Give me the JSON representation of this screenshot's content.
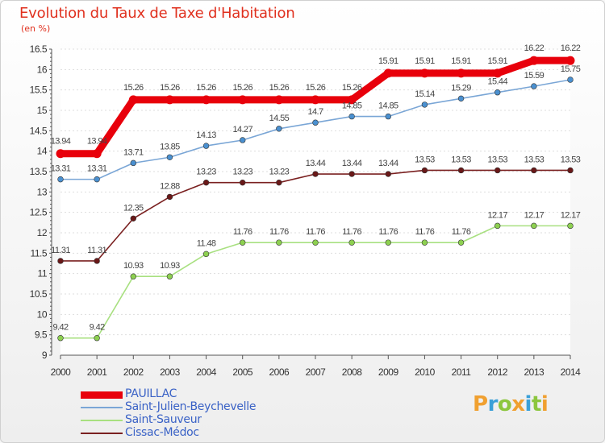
{
  "header": {
    "title": "Evolution du Taux de Taxe d'Habitation",
    "unit": "(en %)"
  },
  "logo": {
    "text": "Proxiti",
    "letters": [
      {
        "ch": "P",
        "color": "#f0a030"
      },
      {
        "ch": "r",
        "color": "#3aa0d8"
      },
      {
        "ch": "o",
        "color": "#8cc63e"
      },
      {
        "ch": "x",
        "color": "#f0a030"
      },
      {
        "ch": "i",
        "color": "#3aa0d8"
      },
      {
        "ch": "t",
        "color": "#8cc63e"
      },
      {
        "ch": "i",
        "color": "#f0a030"
      }
    ]
  },
  "chart_data": {
    "type": "line",
    "title": "Evolution du Taux de Taxe d'Habitation",
    "ylabel": "(en %)",
    "xlabel": "",
    "x": [
      2000,
      2001,
      2002,
      2003,
      2004,
      2005,
      2006,
      2007,
      2008,
      2009,
      2010,
      2011,
      2012,
      2013,
      2014
    ],
    "ylim": [
      9,
      16.5
    ],
    "yticks": [
      "9",
      "9.5",
      "10",
      "10.5",
      "11",
      "11.5",
      "12",
      "12.5",
      "13",
      "13.5",
      "14",
      "14.5",
      "15",
      "15.5",
      "16",
      "16.5"
    ],
    "grid": "horizontal dashed",
    "legend_position": "bottom-left",
    "series": [
      {
        "name": "PAUILLAC",
        "color": "#e8000b",
        "values": [
          13.94,
          13.94,
          15.26,
          15.26,
          15.26,
          15.26,
          15.26,
          15.26,
          15.26,
          15.91,
          15.91,
          15.91,
          15.91,
          16.22,
          16.22
        ],
        "labels": [
          "13.94",
          "13.94",
          "15.26",
          "15.26",
          "15.26",
          "15.26",
          "15.26",
          "15.26",
          "15.26",
          "15.91",
          "15.91",
          "15.91",
          "15.91",
          "16.22",
          "16.22"
        ]
      },
      {
        "name": "Saint-Julien-Beychevelle",
        "color": "#7aa6d6",
        "marker": "#4a90d0",
        "values": [
          13.31,
          13.31,
          13.71,
          13.85,
          14.13,
          14.27,
          14.55,
          14.7,
          14.85,
          14.85,
          15.14,
          15.29,
          15.44,
          15.59,
          15.75
        ],
        "labels": [
          "13.31",
          "13.31",
          "13.71",
          "13.85",
          "14.13",
          "14.27",
          "14.55",
          "14.7",
          "14.85",
          "14.85",
          "15.14",
          "15.29",
          "15.44",
          "15.59",
          "15.75"
        ]
      },
      {
        "name": "Saint-Sauveur",
        "color": "#a8e080",
        "marker": "#8dd050",
        "values": [
          9.42,
          9.42,
          10.93,
          10.93,
          11.48,
          11.76,
          11.76,
          11.76,
          11.76,
          11.76,
          11.76,
          11.76,
          12.17,
          12.17,
          12.17
        ],
        "labels": [
          "9.42",
          "9.42",
          "10.93",
          "10.93",
          "11.48",
          "11.76",
          "11.76",
          "11.76",
          "11.76",
          "11.76",
          "11.76",
          "11.76",
          "12.17",
          "12.17",
          "12.17"
        ]
      },
      {
        "name": "Cissac-Médoc",
        "color": "#7a2020",
        "marker": "#6a1818",
        "values": [
          11.31,
          11.31,
          12.35,
          12.88,
          13.23,
          13.23,
          13.23,
          13.44,
          13.44,
          13.44,
          13.53,
          13.53,
          13.53,
          13.53,
          13.53
        ],
        "labels": [
          "11.31",
          "11.31",
          "12.35",
          "12.88",
          "13.23",
          "13.23",
          "13.23",
          "13.44",
          "13.44",
          "13.44",
          "13.53",
          "13.53",
          "13.53",
          "13.53",
          "13.53"
        ]
      }
    ]
  }
}
